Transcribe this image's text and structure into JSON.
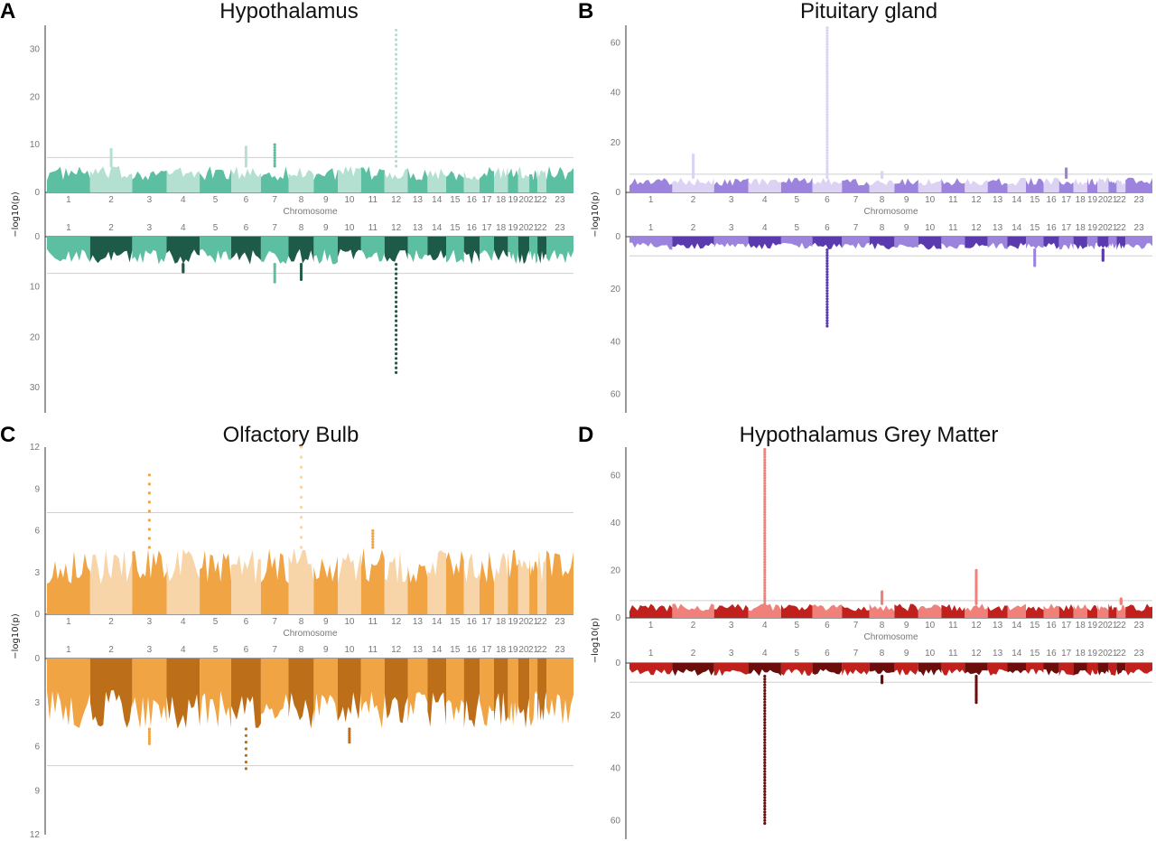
{
  "chart_data": [
    {
      "panel": "A",
      "title": "Hypothalamus",
      "type": "scatter",
      "subtype": "miami",
      "xlabel": "Chromosome",
      "ylabel": "−log10(p)",
      "chromosomes": [
        "1",
        "2",
        "3",
        "4",
        "5",
        "6",
        "7",
        "8",
        "9",
        "10",
        "11",
        "12",
        "13",
        "14",
        "15",
        "16",
        "17",
        "18",
        "19",
        "20",
        "21",
        "22",
        "23"
      ],
      "top": {
        "ylim": [
          0,
          35
        ],
        "yticks": [
          0,
          10,
          20,
          30
        ],
        "threshold": 7.3,
        "colors": [
          "#5cbfa2",
          "#b4e0d2"
        ],
        "baseline_peak": 5.5,
        "peaks": [
          {
            "chromosome": "2",
            "value": 9
          },
          {
            "chromosome": "6",
            "value": 9.5
          },
          {
            "chromosome": "7",
            "value": 10
          },
          {
            "chromosome": "12",
            "value": 34
          }
        ]
      },
      "bottom": {
        "ylim": [
          0,
          35
        ],
        "yticks": [
          0,
          10,
          20,
          30
        ],
        "threshold": 7.3,
        "colors": [
          "#5cbfa2",
          "#1e5a48"
        ],
        "baseline_peak": 5.5,
        "peaks": [
          {
            "chromosome": "4",
            "value": 7
          },
          {
            "chromosome": "7",
            "value": 9
          },
          {
            "chromosome": "8",
            "value": 8.5
          },
          {
            "chromosome": "12",
            "value": 27
          }
        ]
      }
    },
    {
      "panel": "B",
      "title": "Pituitary gland",
      "type": "scatter",
      "subtype": "miami",
      "xlabel": "Chromosome",
      "ylabel": "−log10(p)",
      "chromosomes": [
        "1",
        "2",
        "3",
        "4",
        "5",
        "6",
        "7",
        "8",
        "9",
        "10",
        "11",
        "12",
        "13",
        "14",
        "15",
        "16",
        "17",
        "18",
        "19",
        "20",
        "21",
        "22",
        "23"
      ],
      "top": {
        "ylim": [
          0,
          67
        ],
        "yticks": [
          0,
          20,
          40,
          60
        ],
        "threshold": 7.3,
        "colors": [
          "#9b83de",
          "#dcd2f4"
        ],
        "baseline_peak": 6,
        "peaks": [
          {
            "chromosome": "2",
            "value": 15
          },
          {
            "chromosome": "6",
            "value": 66
          },
          {
            "chromosome": "8",
            "value": 8
          },
          {
            "chromosome": "17",
            "value": 9.5
          }
        ]
      },
      "bottom": {
        "ylim": [
          0,
          67
        ],
        "yticks": [
          0,
          20,
          40,
          60
        ],
        "threshold": 7.3,
        "colors": [
          "#9b83de",
          "#5b3ab0"
        ],
        "baseline_peak": 5,
        "peaks": [
          {
            "chromosome": "6",
            "value": 34
          },
          {
            "chromosome": "15",
            "value": 11
          },
          {
            "chromosome": "20",
            "value": 9
          }
        ]
      }
    },
    {
      "panel": "C",
      "title": "Olfactory Bulb",
      "type": "scatter",
      "subtype": "miami",
      "xlabel": "Chromosome",
      "ylabel": "−log10(p)",
      "chromosomes": [
        "1",
        "2",
        "3",
        "4",
        "5",
        "6",
        "7",
        "8",
        "9",
        "10",
        "11",
        "12",
        "13",
        "14",
        "15",
        "16",
        "17",
        "18",
        "19",
        "20",
        "21",
        "22",
        "23"
      ],
      "top": {
        "ylim": [
          0,
          12
        ],
        "yticks": [
          0,
          3,
          6,
          9,
          12
        ],
        "threshold": 7.3,
        "colors": [
          "#f0a443",
          "#f7d5a8"
        ],
        "baseline_peak": 4.8,
        "peaks": [
          {
            "chromosome": "3",
            "value": 10
          },
          {
            "chromosome": "8",
            "value": 12
          },
          {
            "chromosome": "11",
            "value": 6
          }
        ]
      },
      "bottom": {
        "ylim": [
          0,
          12
        ],
        "yticks": [
          0,
          3,
          6,
          9,
          12
        ],
        "threshold": 7.3,
        "colors": [
          "#f0a443",
          "#bd6e18"
        ],
        "baseline_peak": 4.8,
        "peaks": [
          {
            "chromosome": "3",
            "value": 5.8
          },
          {
            "chromosome": "6",
            "value": 7.5
          },
          {
            "chromosome": "10",
            "value": 5.7
          }
        ]
      }
    },
    {
      "panel": "D",
      "title": "Hypothalamus Grey Matter",
      "type": "scatter",
      "subtype": "miami",
      "xlabel": "Chromosome",
      "ylabel": "−log10(p)",
      "chromosomes": [
        "1",
        "2",
        "3",
        "4",
        "5",
        "6",
        "7",
        "8",
        "9",
        "10",
        "11",
        "12",
        "13",
        "14",
        "15",
        "16",
        "17",
        "18",
        "19",
        "20",
        "21",
        "22",
        "23"
      ],
      "top": {
        "ylim": [
          0,
          72
        ],
        "yticks": [
          0,
          20,
          40,
          60
        ],
        "threshold": 7.3,
        "colors": [
          "#c0211c",
          "#f0817a"
        ],
        "baseline_peak": 6,
        "peaks": [
          {
            "chromosome": "4",
            "value": 71
          },
          {
            "chromosome": "8",
            "value": 11
          },
          {
            "chromosome": "12",
            "value": 20
          },
          {
            "chromosome": "22",
            "value": 8
          }
        ]
      },
      "bottom": {
        "ylim": [
          0,
          67
        ],
        "yticks": [
          0,
          20,
          40,
          60
        ],
        "threshold": 7.3,
        "colors": [
          "#c0211c",
          "#6b0d0b"
        ],
        "baseline_peak": 5,
        "peaks": [
          {
            "chromosome": "4",
            "value": 61
          },
          {
            "chromosome": "8",
            "value": 7.5
          },
          {
            "chromosome": "12",
            "value": 15
          }
        ]
      }
    }
  ]
}
